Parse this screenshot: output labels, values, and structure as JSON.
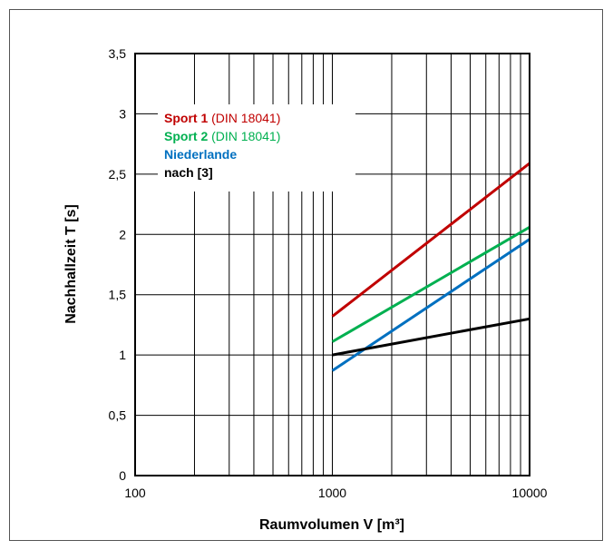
{
  "chart_data": {
    "type": "line",
    "xlabel": "Raumvolumen V  [m³]",
    "ylabel": "Nachhallzeit  T  [s]",
    "x_scale": "log",
    "xlim": [
      100,
      10000
    ],
    "ylim": [
      0,
      3.5
    ],
    "x_ticks": [
      {
        "value": 100,
        "label": "100"
      },
      {
        "value": 1000,
        "label": "1000"
      },
      {
        "value": 10000,
        "label": "10000"
      }
    ],
    "y_ticks": [
      {
        "value": 0,
        "label": "0"
      },
      {
        "value": 0.5,
        "label": "0,5"
      },
      {
        "value": 1,
        "label": "1"
      },
      {
        "value": 1.5,
        "label": "1,5"
      },
      {
        "value": 2,
        "label": "2"
      },
      {
        "value": 2.5,
        "label": "2,5"
      },
      {
        "value": 3,
        "label": "3"
      },
      {
        "value": 3.5,
        "label": "3,5"
      }
    ],
    "grid": true,
    "legend_position": "top-left",
    "series": [
      {
        "name": "Sport 1",
        "name_suffix": " (DIN 18041)",
        "color": "#c00000",
        "x": [
          1000,
          10000
        ],
        "y": [
          1.32,
          2.59
        ]
      },
      {
        "name": "Sport 2",
        "name_suffix": " (DIN 18041)",
        "color": "#00b050",
        "x": [
          1000,
          10000
        ],
        "y": [
          1.11,
          2.06
        ]
      },
      {
        "name": "Niederlande",
        "name_suffix": "",
        "color": "#0070c0",
        "x": [
          1000,
          10000
        ],
        "y": [
          0.87,
          1.96
        ]
      },
      {
        "name": "nach [3]",
        "name_suffix": "",
        "color": "#000000",
        "x": [
          1000,
          10000
        ],
        "y": [
          1.0,
          1.3
        ]
      }
    ]
  }
}
